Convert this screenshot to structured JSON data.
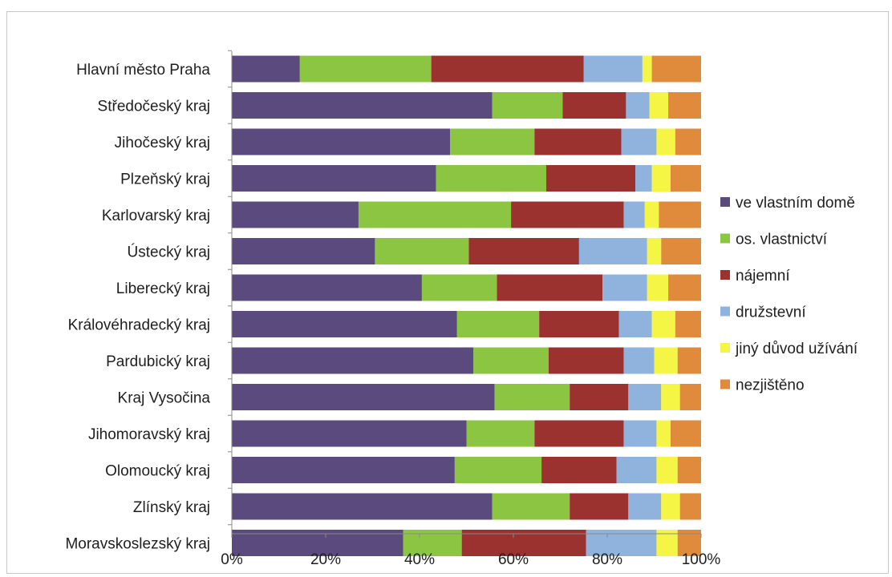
{
  "chart_data": {
    "type": "bar",
    "orientation": "horizontal",
    "stacked": "percent",
    "title": "",
    "xlabel": "",
    "ylabel": "",
    "xlim": [
      0,
      100
    ],
    "x_ticks": [
      "0%",
      "20%",
      "40%",
      "60%",
      "80%",
      "100%"
    ],
    "grid": false,
    "legend_position": "right",
    "categories": [
      "Hlavní město Praha",
      "Středočeský kraj",
      "Jihočeský kraj",
      "Plzeňský kraj",
      "Karlovarský kraj",
      "Ústecký kraj",
      "Liberecký kraj",
      "Královéhradecký kraj",
      "Pardubický kraj",
      "Kraj Vysočina",
      "Jihomoravský kraj",
      "Olomoucký kraj",
      "Zlínský kraj",
      "Moravskoslezský kraj"
    ],
    "series": [
      {
        "name": "ve vlastním domě",
        "color": "#5b4a7d",
        "values": [
          14.5,
          55.5,
          46.5,
          43.5,
          27,
          30.5,
          40.5,
          48,
          51.5,
          56,
          50,
          47.5,
          55.5,
          36.5
        ]
      },
      {
        "name": "os. vlastnictví",
        "color": "#8cc542",
        "values": [
          28,
          15,
          18,
          23.5,
          32.5,
          20,
          16,
          17.5,
          16,
          16,
          14.5,
          18.5,
          16.5,
          12.5
        ]
      },
      {
        "name": "nájemní",
        "color": "#9b3230",
        "values": [
          32.5,
          13.5,
          18.5,
          19,
          24,
          23.5,
          22.5,
          17,
          16,
          12.5,
          19,
          16,
          12.5,
          26.5
        ]
      },
      {
        "name": "družstevní",
        "color": "#8fb3dc",
        "values": [
          12.5,
          5,
          7.5,
          3.5,
          4.5,
          14.5,
          9.5,
          7,
          6.5,
          7,
          7,
          8.5,
          7,
          15
        ]
      },
      {
        "name": "jiný důvod užívání",
        "color": "#f5f545",
        "values": [
          2,
          4,
          4,
          4,
          3,
          3,
          4.5,
          5,
          5,
          4,
          3,
          4.5,
          4,
          4.5
        ]
      },
      {
        "name": "nezjištěno",
        "color": "#e08a3c",
        "values": [
          10.5,
          7,
          5.5,
          6.5,
          9,
          8.5,
          7,
          5.5,
          5,
          4.5,
          6.5,
          5,
          4.5,
          5
        ]
      }
    ]
  }
}
